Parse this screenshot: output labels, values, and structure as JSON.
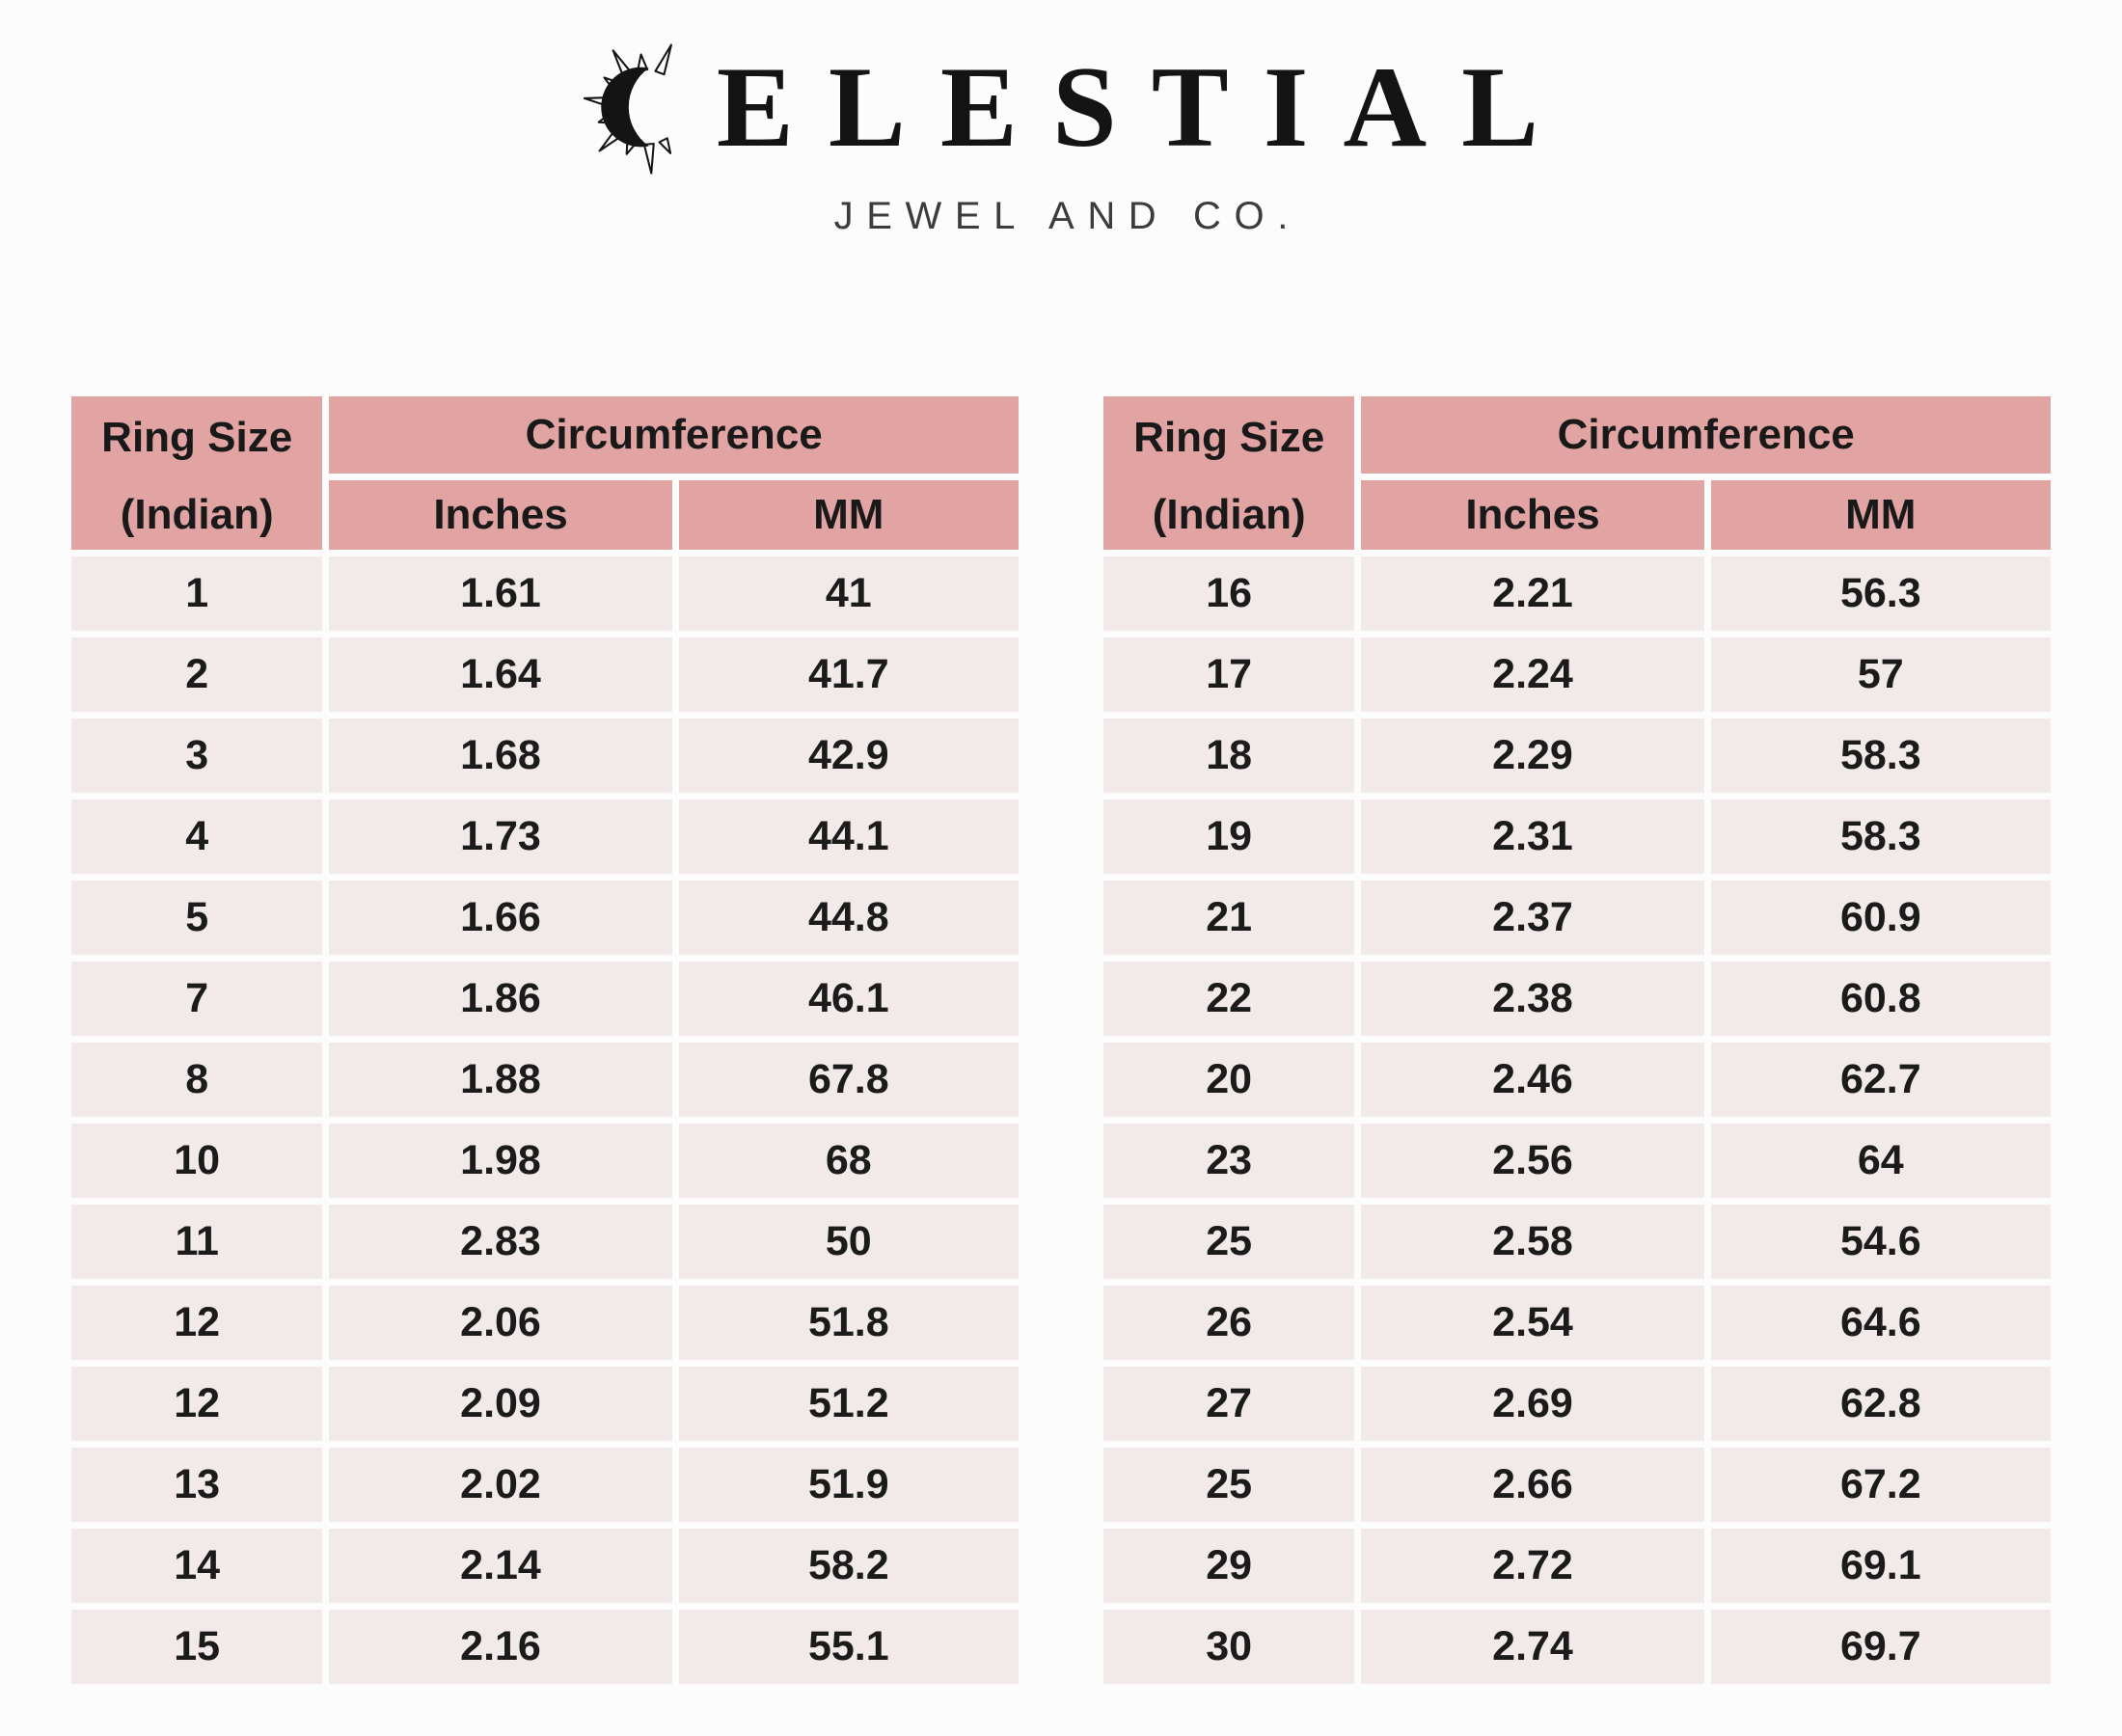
{
  "logo": {
    "icon": "crescent-sun-icon",
    "brand_full": "CELESTIAL",
    "brand_text_after_icon": "ELESTIAL",
    "tagline": "JEWEL AND CO."
  },
  "colors": {
    "header_pink": "#e2a3a3",
    "row_pink": "#f2e9e9",
    "page_bg": "#fdfcfc",
    "text": "#1b1b1b"
  },
  "tables": [
    {
      "headers": {
        "ring_size_line1": "Ring Size",
        "ring_size_line2": "(Indian)",
        "circumference": "Circumference",
        "inches": "Inches",
        "mm": "MM"
      },
      "rows": [
        [
          "1",
          "1.61",
          "41"
        ],
        [
          "2",
          "1.64",
          "41.7"
        ],
        [
          "3",
          "1.68",
          "42.9"
        ],
        [
          "4",
          "1.73",
          "44.1"
        ],
        [
          "5",
          "1.66",
          "44.8"
        ],
        [
          "7",
          "1.86",
          "46.1"
        ],
        [
          "8",
          "1.88",
          "67.8"
        ],
        [
          "10",
          "1.98",
          "68"
        ],
        [
          "11",
          "2.83",
          "50"
        ],
        [
          "12",
          "2.06",
          "51.8"
        ],
        [
          "12",
          "2.09",
          "51.2"
        ],
        [
          "13",
          "2.02",
          "51.9"
        ],
        [
          "14",
          "2.14",
          "58.2"
        ],
        [
          "15",
          "2.16",
          "55.1"
        ]
      ]
    },
    {
      "headers": {
        "ring_size_line1": "Ring Size",
        "ring_size_line2": "(Indian)",
        "circumference": "Circumference",
        "inches": "Inches",
        "mm": "MM"
      },
      "rows": [
        [
          "16",
          "2.21",
          "56.3"
        ],
        [
          "17",
          "2.24",
          "57"
        ],
        [
          "18",
          "2.29",
          "58.3"
        ],
        [
          "19",
          "2.31",
          "58.3"
        ],
        [
          "21",
          "2.37",
          "60.9"
        ],
        [
          "22",
          "2.38",
          "60.8"
        ],
        [
          "20",
          "2.46",
          "62.7"
        ],
        [
          "23",
          "2.56",
          "64"
        ],
        [
          "25",
          "2.58",
          "54.6"
        ],
        [
          "26",
          "2.54",
          "64.6"
        ],
        [
          "27",
          "2.69",
          "62.8"
        ],
        [
          "25",
          "2.66",
          "67.2"
        ],
        [
          "29",
          "2.72",
          "69.1"
        ],
        [
          "30",
          "2.74",
          "69.7"
        ]
      ]
    }
  ],
  "chart_data": [
    {
      "type": "table",
      "title": "Ring Size (Indian) to Circumference - sizes 1 to 15",
      "columns": [
        "Ring Size (Indian)",
        "Circumference Inches",
        "Circumference MM"
      ],
      "rows": [
        [
          "1",
          "1.61",
          "41"
        ],
        [
          "2",
          "1.64",
          "41.7"
        ],
        [
          "3",
          "1.68",
          "42.9"
        ],
        [
          "4",
          "1.73",
          "44.1"
        ],
        [
          "5",
          "1.66",
          "44.8"
        ],
        [
          "7",
          "1.86",
          "46.1"
        ],
        [
          "8",
          "1.88",
          "67.8"
        ],
        [
          "10",
          "1.98",
          "68"
        ],
        [
          "11",
          "2.83",
          "50"
        ],
        [
          "12",
          "2.06",
          "51.8"
        ],
        [
          "12",
          "2.09",
          "51.2"
        ],
        [
          "13",
          "2.02",
          "51.9"
        ],
        [
          "14",
          "2.14",
          "58.2"
        ],
        [
          "15",
          "2.16",
          "55.1"
        ]
      ]
    },
    {
      "type": "table",
      "title": "Ring Size (Indian) to Circumference - sizes 16 to 30",
      "columns": [
        "Ring Size (Indian)",
        "Circumference Inches",
        "Circumference MM"
      ],
      "rows": [
        [
          "16",
          "2.21",
          "56.3"
        ],
        [
          "17",
          "2.24",
          "57"
        ],
        [
          "18",
          "2.29",
          "58.3"
        ],
        [
          "19",
          "2.31",
          "58.3"
        ],
        [
          "21",
          "2.37",
          "60.9"
        ],
        [
          "22",
          "2.38",
          "60.8"
        ],
        [
          "20",
          "2.46",
          "62.7"
        ],
        [
          "23",
          "2.56",
          "64"
        ],
        [
          "25",
          "2.58",
          "54.6"
        ],
        [
          "26",
          "2.54",
          "64.6"
        ],
        [
          "27",
          "2.69",
          "62.8"
        ],
        [
          "25",
          "2.66",
          "67.2"
        ],
        [
          "29",
          "2.72",
          "69.1"
        ],
        [
          "30",
          "2.74",
          "69.7"
        ]
      ]
    }
  ]
}
